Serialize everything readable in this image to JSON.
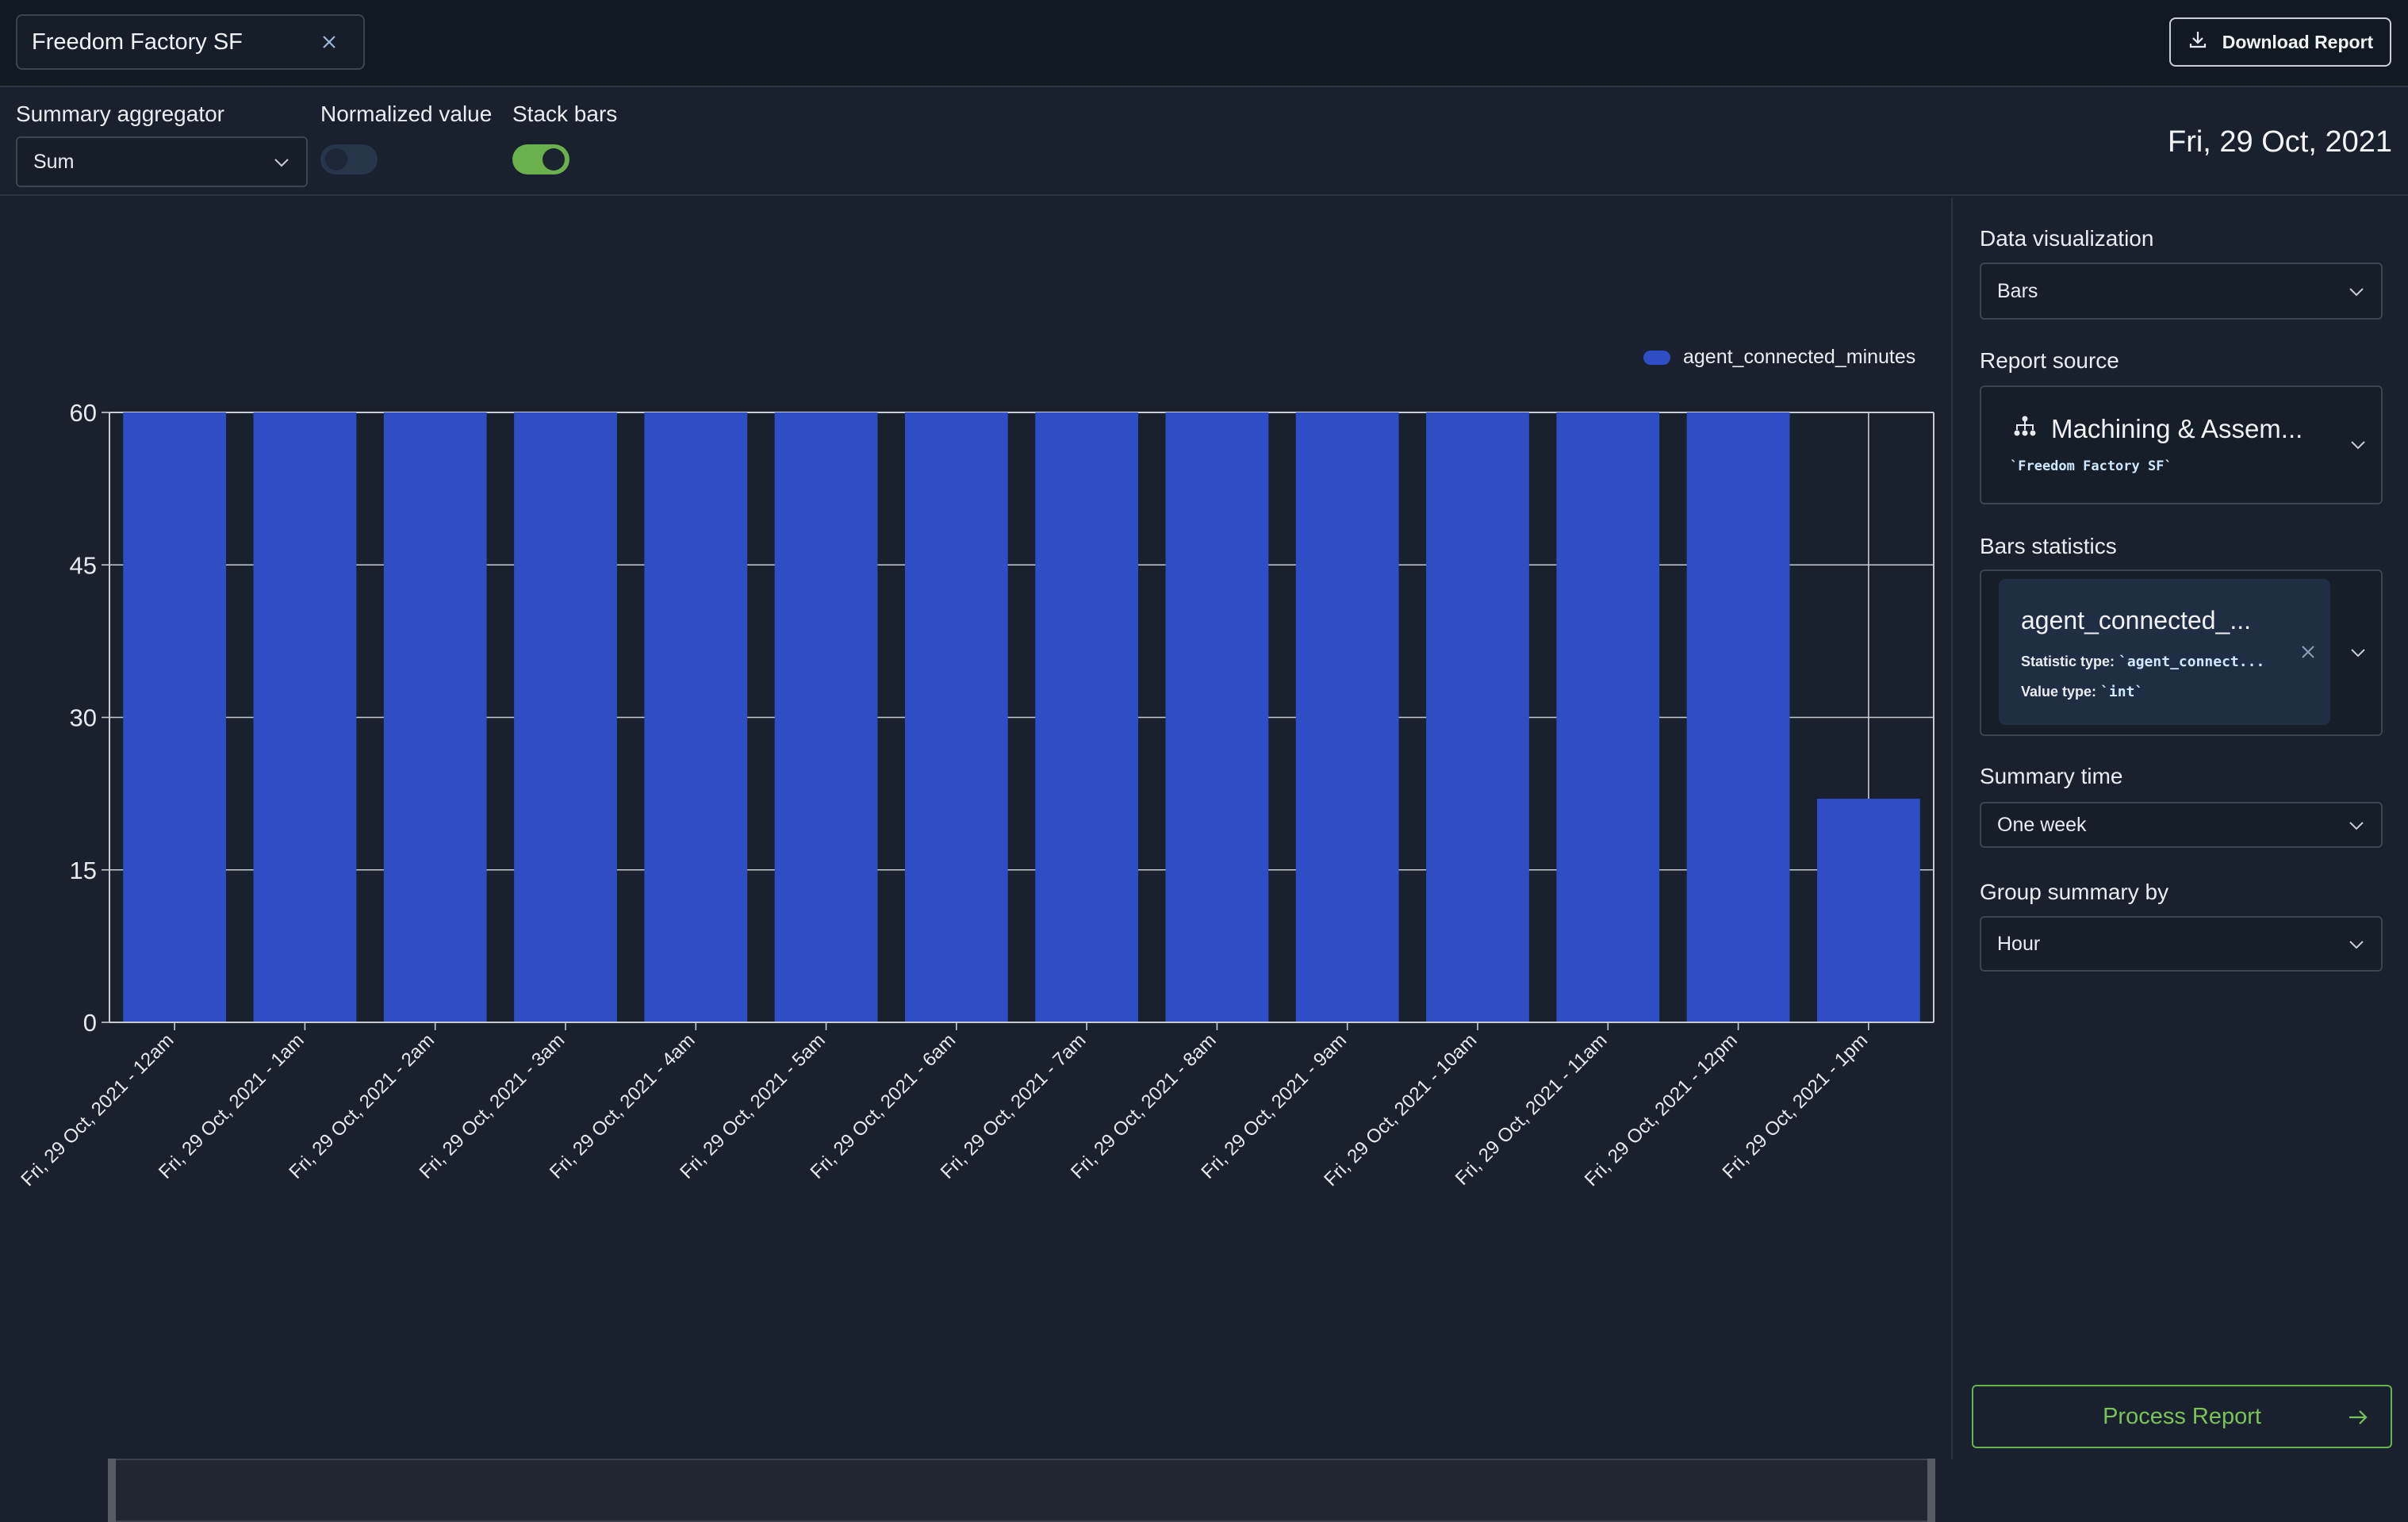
{
  "header": {
    "filter_chip": "Freedom Factory SF",
    "download_label": "Download Report"
  },
  "controls": {
    "aggregator_label": "Summary aggregator",
    "aggregator_value": "Sum",
    "normalized_label": "Normalized value",
    "normalized_on": false,
    "stack_label": "Stack bars",
    "stack_on": true,
    "date": "Fri, 29 Oct, 2021"
  },
  "panel": {
    "viz_label": "Data visualization",
    "viz_value": "Bars",
    "source_label": "Report source",
    "source_title": "Machining & Assem...",
    "source_sub": "`Freedom Factory SF`",
    "stats_label": "Bars statistics",
    "stat_title": "agent_connected_...",
    "stat_type_label": "Statistic type:",
    "stat_type_value": "`agent_connect...",
    "value_type_label": "Value type:",
    "value_type_value": "`int`",
    "summary_time_label": "Summary time",
    "summary_time_value": "One week",
    "group_label": "Group summary by",
    "group_value": "Hour",
    "process_label": "Process Report"
  },
  "colors": {
    "bar": "#2f4ec5",
    "accent_green": "#6ab04c",
    "background": "#18212d"
  },
  "chart_data": {
    "type": "bar",
    "title": "",
    "xlabel": "",
    "ylabel": "",
    "ylim": [
      0,
      60
    ],
    "yticks": [
      0,
      15,
      30,
      45,
      60
    ],
    "grid": true,
    "legend_position": "top-right",
    "categories": [
      "Fri, 29 Oct, 2021 - 12am",
      "Fri, 29 Oct, 2021 - 1am",
      "Fri, 29 Oct, 2021 - 2am",
      "Fri, 29 Oct, 2021 - 3am",
      "Fri, 29 Oct, 2021 - 4am",
      "Fri, 29 Oct, 2021 - 5am",
      "Fri, 29 Oct, 2021 - 6am",
      "Fri, 29 Oct, 2021 - 7am",
      "Fri, 29 Oct, 2021 - 8am",
      "Fri, 29 Oct, 2021 - 9am",
      "Fri, 29 Oct, 2021 - 10am",
      "Fri, 29 Oct, 2021 - 11am",
      "Fri, 29 Oct, 2021 - 12pm",
      "Fri, 29 Oct, 2021 - 1pm"
    ],
    "series": [
      {
        "name": "agent_connected_minutes",
        "values": [
          60,
          60,
          60,
          60,
          60,
          60,
          60,
          60,
          60,
          60,
          60,
          60,
          60,
          22
        ]
      }
    ]
  }
}
